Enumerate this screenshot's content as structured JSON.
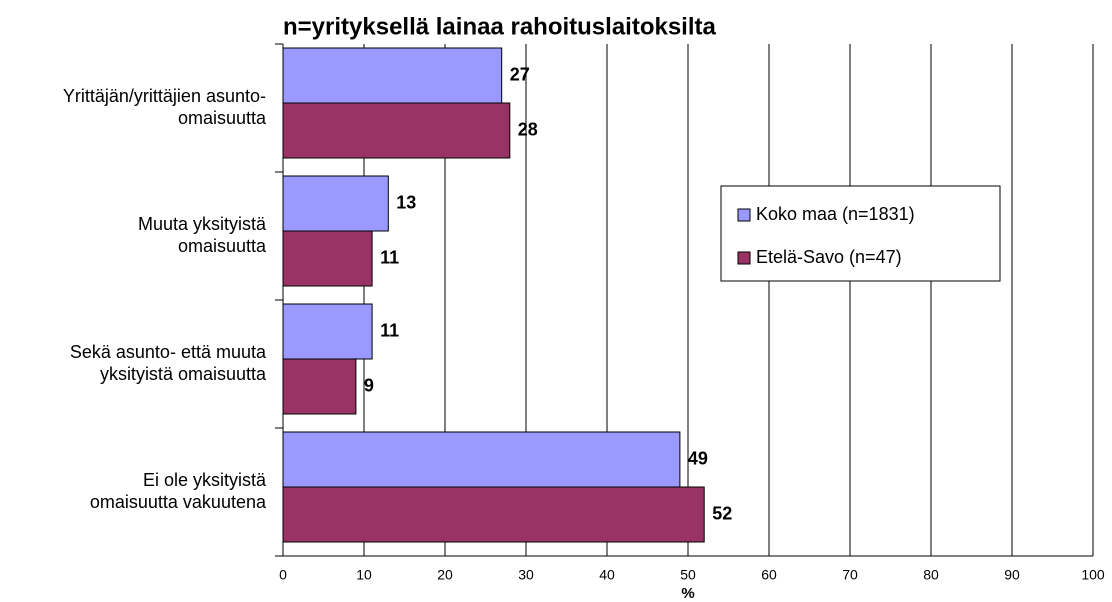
{
  "chart_data": {
    "type": "hbar",
    "title": "n=yrityksellä lainaa rahoituslaitoksilta",
    "categories": [
      [
        "Yrittäjän/yrittäjien asunto-",
        "omaisuutta"
      ],
      [
        "Muuta yksityistä",
        "omaisuutta"
      ],
      [
        "Sekä asunto- että muuta",
        "yksityistä omaisuutta"
      ],
      [
        "Ei ole yksityistä",
        "omaisuutta vakuutena"
      ]
    ],
    "series": [
      {
        "name": "Koko maa (n=1831)",
        "color": "#9999ff",
        "values": [
          27,
          13,
          11,
          49
        ]
      },
      {
        "name": "Etelä-Savo (n=47)",
        "color": "#993366",
        "values": [
          28,
          11,
          9,
          52
        ]
      }
    ],
    "xlim": [
      0,
      100
    ],
    "xticks": [
      0,
      10,
      20,
      30,
      40,
      50,
      60,
      70,
      80,
      90,
      100
    ],
    "xlabel": "%",
    "grid": true,
    "legend": "right"
  }
}
